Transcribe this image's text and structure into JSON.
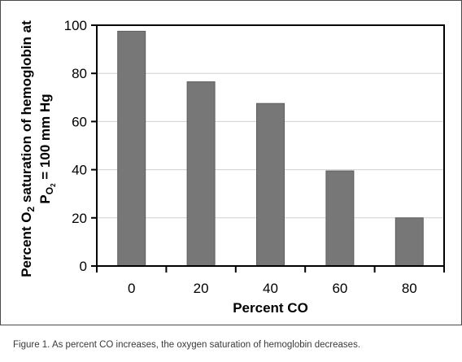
{
  "chart_data": {
    "type": "bar",
    "categories": [
      "0",
      "20",
      "40",
      "60",
      "80"
    ],
    "values": [
      97.5,
      76.5,
      67.5,
      39.5,
      20
    ],
    "xlabel": "Percent CO",
    "ylabel_line1_part1": "Percent O",
    "ylabel_line1_sub": "2",
    "ylabel_line1_part2": " saturation of hemoglobin at",
    "ylabel_line2_part1": "P",
    "ylabel_line2_sub": "O",
    "ylabel_line2_subsub": "2",
    "ylabel_line2_part2": " = 100 mm Hg",
    "ylim": [
      0,
      100
    ],
    "yticks": [
      "0",
      "20",
      "40",
      "60",
      "80",
      "100"
    ],
    "grid": true,
    "bar_color": "#777777",
    "grid_color": "#d0d0d0"
  },
  "caption": "Figure 1. As percent CO increases, the oxygen saturation of hemoglobin decreases."
}
